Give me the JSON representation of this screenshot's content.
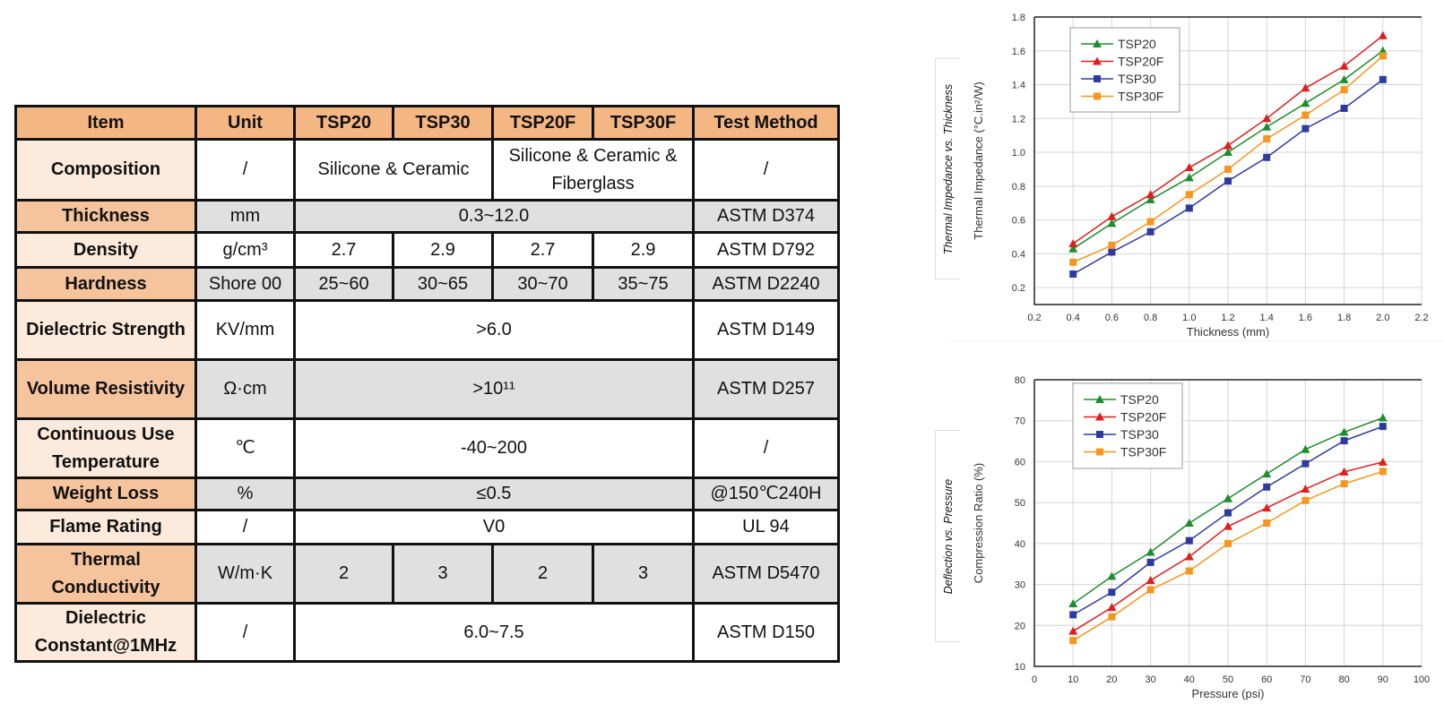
{
  "table": {
    "headers": [
      "Item",
      "Unit",
      "TSP20",
      "TSP30",
      "TSP20F",
      "TSP30F",
      "Test Method"
    ],
    "rows": [
      {
        "label": "Composition",
        "cells": [
          {
            "text": "/",
            "span": 1
          },
          {
            "text": "Silicone & Ceramic",
            "span": 2
          },
          {
            "text": "Silicone & Ceramic & Fiberglass",
            "span": 2
          },
          {
            "text": "/",
            "span": 1
          }
        ]
      },
      {
        "label": "Thickness",
        "cells": [
          {
            "text": "mm",
            "span": 1
          },
          {
            "text": "0.3~12.0",
            "span": 4
          },
          {
            "text": "ASTM D374",
            "span": 1
          }
        ]
      },
      {
        "label": "Density",
        "cells": [
          {
            "text": "g/cm³",
            "span": 1
          },
          {
            "text": "2.7",
            "span": 1
          },
          {
            "text": "2.9",
            "span": 1
          },
          {
            "text": "2.7",
            "span": 1
          },
          {
            "text": "2.9",
            "span": 1
          },
          {
            "text": "ASTM D792",
            "span": 1
          }
        ]
      },
      {
        "label": "Hardness",
        "cells": [
          {
            "text": "Shore 00",
            "span": 1
          },
          {
            "text": "25~60",
            "span": 1
          },
          {
            "text": "30~65",
            "span": 1
          },
          {
            "text": "30~70",
            "span": 1
          },
          {
            "text": "35~75",
            "span": 1
          },
          {
            "text": "ASTM D2240",
            "span": 1
          }
        ]
      },
      {
        "label": "Dielectric Strength",
        "cells": [
          {
            "text": "KV/mm",
            "span": 1
          },
          {
            "text": ">6.0",
            "span": 4
          },
          {
            "text": "ASTM D149",
            "span": 1
          }
        ]
      },
      {
        "label": "Volume Resistivity",
        "cells": [
          {
            "text": "Ω·cm",
            "span": 1
          },
          {
            "text": ">10¹¹",
            "span": 4
          },
          {
            "text": "ASTM D257",
            "span": 1
          }
        ]
      },
      {
        "label": "Continuous Use Temperature",
        "cells": [
          {
            "text": "℃",
            "span": 1
          },
          {
            "text": "-40~200",
            "span": 4
          },
          {
            "text": "/",
            "span": 1
          }
        ]
      },
      {
        "label": "Weight Loss",
        "cells": [
          {
            "text": "%",
            "span": 1
          },
          {
            "text": "≤0.5",
            "span": 4
          },
          {
            "text": "@150℃240H",
            "span": 1
          }
        ]
      },
      {
        "label": "Flame Rating",
        "cells": [
          {
            "text": "/",
            "span": 1
          },
          {
            "text": "V0",
            "span": 4
          },
          {
            "text": "UL 94",
            "span": 1
          }
        ]
      },
      {
        "label": "Thermal Conductivity",
        "cells": [
          {
            "text": "W/m·K",
            "span": 1
          },
          {
            "text": "2",
            "span": 1
          },
          {
            "text": "3",
            "span": 1
          },
          {
            "text": "2",
            "span": 1
          },
          {
            "text": "3",
            "span": 1
          },
          {
            "text": "ASTM D5470",
            "span": 1
          }
        ]
      },
      {
        "label": "Dielectric Constant@1MHz",
        "cells": [
          {
            "text": "/",
            "span": 1
          },
          {
            "text": "6.0~7.5",
            "span": 4
          },
          {
            "text": "ASTM D150",
            "span": 1
          }
        ]
      }
    ],
    "colors": {
      "header": "#F4B783",
      "label_light": "#FCEADC",
      "label_dark": "#F5C39C",
      "gray_row": "#E0E0E0"
    }
  },
  "side_labels": [
    "Thermal Impedance vs. Thickness",
    "Deflection vs. Pressure"
  ],
  "chart_data": [
    {
      "type": "line",
      "title": "Thermal Impedance vs. Thickness",
      "xlabel": "Thickness (mm)",
      "ylabel": "Thermal Impedance (°C.in²/W)",
      "xlim": [
        0.2,
        2.2
      ],
      "ylim": [
        0.1,
        1.8
      ],
      "xticks": [
        "0.2",
        "0.4",
        "0.6",
        "0.8",
        "1.0",
        "1.2",
        "1.4",
        "1.6",
        "1.8",
        "2.0",
        "2.2"
      ],
      "yticks": [
        "0.2",
        "0.4",
        "0.6",
        "0.8",
        "1.0",
        "1.2",
        "1.4",
        "1.6",
        "1.8"
      ],
      "grid": true,
      "legend": "top-left",
      "x": [
        0.4,
        0.6,
        0.8,
        1.0,
        1.2,
        1.4,
        1.6,
        1.8,
        2.0
      ],
      "series": [
        {
          "name": "TSP20",
          "color": "#1E8C2E",
          "marker": "triangle",
          "values": [
            0.43,
            0.58,
            0.72,
            0.85,
            1.0,
            1.15,
            1.29,
            1.43,
            1.6
          ]
        },
        {
          "name": "TSP20F",
          "color": "#E01E1E",
          "marker": "triangle",
          "values": [
            0.46,
            0.62,
            0.75,
            0.91,
            1.04,
            1.2,
            1.38,
            1.51,
            1.69
          ]
        },
        {
          "name": "TSP30",
          "color": "#2E3A9E",
          "marker": "square",
          "values": [
            0.28,
            0.41,
            0.53,
            0.67,
            0.83,
            0.97,
            1.14,
            1.26,
            1.43
          ]
        },
        {
          "name": "TSP30F",
          "color": "#F5961E",
          "marker": "square",
          "values": [
            0.35,
            0.45,
            0.59,
            0.75,
            0.9,
            1.08,
            1.22,
            1.37,
            1.57
          ]
        }
      ]
    },
    {
      "type": "line",
      "title": "Deflection vs. Pressure",
      "xlabel": "Pressure (psi)",
      "ylabel": "Compression Ratio (%)",
      "xlim": [
        0,
        100
      ],
      "ylim": [
        10,
        80
      ],
      "xticks": [
        "0",
        "10",
        "20",
        "30",
        "40",
        "50",
        "60",
        "70",
        "80",
        "90",
        "100"
      ],
      "yticks": [
        "10",
        "20",
        "30",
        "40",
        "50",
        "60",
        "70",
        "80"
      ],
      "grid": true,
      "legend": "top-left",
      "x": [
        10,
        20,
        30,
        40,
        50,
        60,
        70,
        80,
        90
      ],
      "series": [
        {
          "name": "TSP20",
          "color": "#1E8C2E",
          "marker": "triangle",
          "values": [
            25.3,
            32,
            37.9,
            45,
            51,
            57,
            63,
            67.2,
            70.7
          ]
        },
        {
          "name": "TSP20F",
          "color": "#E01E1E",
          "marker": "triangle",
          "values": [
            18.6,
            24.4,
            31,
            36.8,
            44.2,
            48.7,
            53.3,
            57.5,
            59.9
          ]
        },
        {
          "name": "TSP30",
          "color": "#2E3A9E",
          "marker": "square",
          "values": [
            22.6,
            28.1,
            35.4,
            40.7,
            47.5,
            53.8,
            59.5,
            65.1,
            68.6
          ]
        },
        {
          "name": "TSP30F",
          "color": "#F5961E",
          "marker": "square",
          "values": [
            16.3,
            22.1,
            28.7,
            33.3,
            40,
            45,
            50.5,
            54.6,
            57.6
          ]
        }
      ]
    }
  ]
}
